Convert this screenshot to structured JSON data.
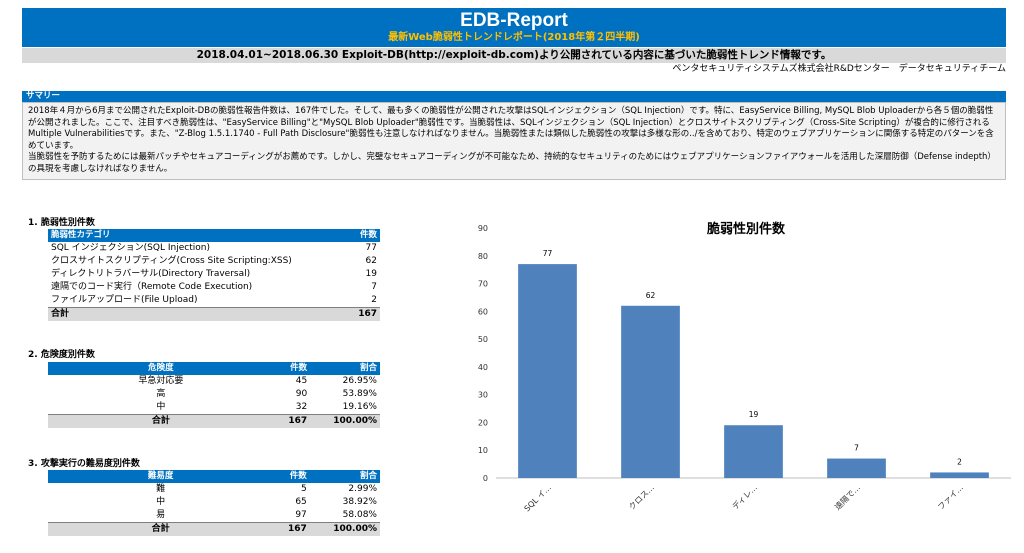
{
  "header": {
    "title": "EDB-Report",
    "subtitle": "最新Web脆弱性トレンドレポート(2018年第２四半期)",
    "period": "2018.04.01~2018.06.30 Exploit-DB(http://exploit-db.com)より公開されている内容に基づいた脆弱性トレンド情報です。",
    "org": "ペンタセキュリティシステムズ株式会社R&Dセンター　データセキュリティチーム"
  },
  "summary": {
    "heading": "サマリー",
    "p1": "2018年４月から6月まで公開されたExploit-DBの脆弱性報告件数は、167件でした。そして、最も多くの脆弱性が公開された攻撃はSQLインジェクション（SQL Injection）です。特に、EasyService Billing, MySQL Blob Uploaderから各５個の脆弱性が公開されました。ここで、注目すべき脆弱性は、\"EasyService Billing\"と\"MySQL Blob Uploader\"脆弱性です。当脆弱性は、SQLインジェクション（SQL Injection）とクロスサイトスクリプティング（Cross-Site Scripting）が複合的に修行されるMultiple Vulnerabilitiesです。また、\"Z-Blog 1.5.1.1740 - Full Path Disclosure\"脆弱性も注意しなければなりません。当脆弱性または類似した脆弱性の攻撃は多様な形の../を含めており、特定のウェブアプリケーションに関係する特定のパターンを含めています。",
    "p2": "当脆弱性を予防するためには最新パッチやセキュアコーディングがお薦めです。しかし、完璧なセキュアコーディングが不可能なため、持続的なセキュリティのためにはウェブアプリケーションファイアウォールを活用した深層防御（Defense indepth）の具現を考慮しなければなりません。"
  },
  "table1": {
    "title": "1. 脆弱性別件数",
    "head": [
      "脆弱性カテゴリ",
      "件数"
    ],
    "rows": [
      [
        "SQL インジェクション(SQL Injection)",
        "77"
      ],
      [
        "クロスサイトスクリプティング(Cross Site Scripting:XSS)",
        "62"
      ],
      [
        "ディレクトリトラバーサル(Directory Traversal)",
        "19"
      ],
      [
        "遠隔でのコード実行（Remote Code Execution)",
        "7"
      ],
      [
        "ファイルアップロード(File Upload)",
        "2"
      ]
    ],
    "total": [
      "合計",
      "167"
    ]
  },
  "table2": {
    "title": "2. 危険度別件数",
    "head": [
      "危険度",
      "件数",
      "割合"
    ],
    "rows": [
      [
        "早急対応要",
        "45",
        "26.95%"
      ],
      [
        "高",
        "90",
        "53.89%"
      ],
      [
        "中",
        "32",
        "19.16%"
      ]
    ],
    "total": [
      "合計",
      "167",
      "100.00%"
    ]
  },
  "table3": {
    "title": "3. 攻撃実行の難易度別件数",
    "head": [
      "難易度",
      "件数",
      "割合"
    ],
    "rows": [
      [
        "難",
        "5",
        "2.99%"
      ],
      [
        "中",
        "65",
        "38.92%"
      ],
      [
        "易",
        "97",
        "58.08%"
      ]
    ],
    "total": [
      "合計",
      "167",
      "100.00%"
    ]
  },
  "chart_data": {
    "type": "bar",
    "title": "脆弱性別件数",
    "categories": [
      "SQL イ...",
      "クロス...",
      "ディレ...",
      "遠隔で...",
      "ファイ..."
    ],
    "values": [
      77,
      62,
      19,
      7,
      2
    ],
    "ylim": [
      0,
      90
    ],
    "yticks": [
      0,
      10,
      20,
      30,
      40,
      50,
      60,
      70,
      80,
      90
    ],
    "bar_color": "#4f81bd",
    "data_labels": true,
    "grid": false
  }
}
